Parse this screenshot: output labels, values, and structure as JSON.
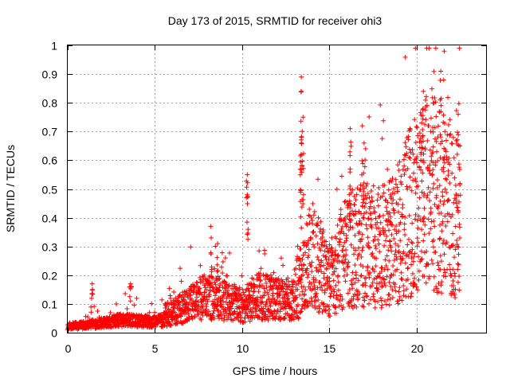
{
  "chart_data": {
    "type": "scatter",
    "title": "Day 173 of 2015, SRMTID for receiver ohi3",
    "xlabel": "GPS time / hours",
    "ylabel": "SRMTID / TECUs",
    "xlim": [
      0,
      24
    ],
    "ylim": [
      0,
      1
    ],
    "xticks": [
      "0",
      "5",
      "10",
      "15",
      "20"
    ],
    "yticks": [
      "0",
      "0.1",
      "0.2",
      "0.3",
      "0.4",
      "0.5",
      "0.6",
      "0.7",
      "0.8",
      "0.9",
      "1"
    ],
    "grid": true,
    "marker": "+",
    "color": "#ff0000",
    "series": [
      {
        "name": "SRMTID",
        "trend": [
          [
            0.0,
            0.03
          ],
          [
            1.0,
            0.035
          ],
          [
            2.0,
            0.045
          ],
          [
            3.0,
            0.06
          ],
          [
            4.0,
            0.055
          ],
          [
            5.0,
            0.05
          ],
          [
            6.0,
            0.07
          ],
          [
            7.0,
            0.1
          ],
          [
            8.0,
            0.13
          ],
          [
            9.0,
            0.11
          ],
          [
            10.0,
            0.1
          ],
          [
            11.0,
            0.13
          ],
          [
            12.0,
            0.12
          ],
          [
            13.0,
            0.11
          ],
          [
            14.0,
            0.22
          ],
          [
            15.0,
            0.15
          ],
          [
            16.0,
            0.23
          ],
          [
            17.0,
            0.25
          ],
          [
            18.0,
            0.24
          ],
          [
            19.0,
            0.28
          ],
          [
            20.0,
            0.38
          ],
          [
            21.0,
            0.4
          ],
          [
            22.0,
            0.33
          ],
          [
            22.5,
            0.35
          ]
        ],
        "peaks": [
          [
            1.4,
            0.17
          ],
          [
            3.6,
            0.17
          ],
          [
            8.2,
            0.37
          ],
          [
            8.6,
            0.31
          ],
          [
            10.3,
            0.55
          ],
          [
            10.3,
            0.48
          ],
          [
            13.4,
            0.89
          ],
          [
            13.4,
            0.84
          ],
          [
            13.5,
            0.75
          ],
          [
            13.4,
            0.66
          ],
          [
            13.4,
            0.62
          ],
          [
            16.2,
            0.71
          ],
          [
            16.2,
            0.57
          ],
          [
            16.9,
            0.72
          ],
          [
            17.0,
            0.66
          ],
          [
            18.5,
            0.53
          ],
          [
            20.3,
            0.73
          ],
          [
            20.4,
            0.84
          ],
          [
            21.0,
            0.8
          ],
          [
            21.4,
            0.91
          ],
          [
            21.6,
            0.98
          ],
          [
            22.4,
            0.76
          ],
          [
            22.5,
            0.65
          ]
        ]
      }
    ]
  }
}
